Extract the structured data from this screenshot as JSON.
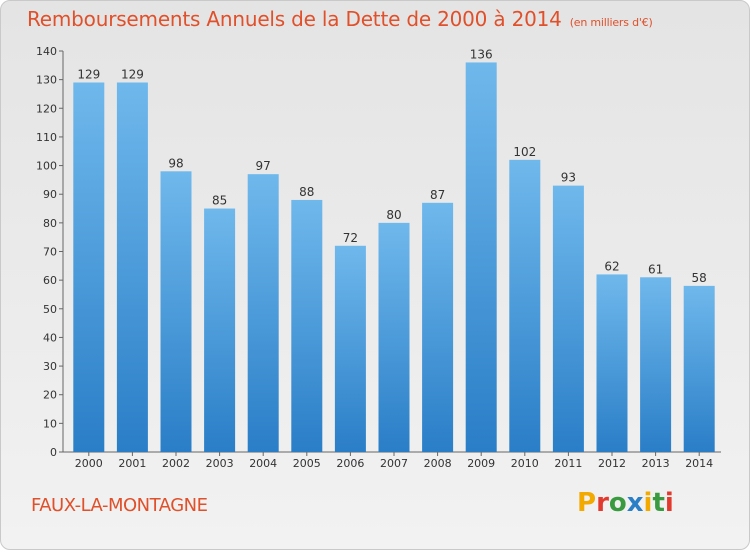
{
  "header": {
    "title": "Remboursements Annuels de la Dette de 2000 à 2014",
    "unit": "(en milliers d'€)"
  },
  "footer": {
    "commune": "FAUX-LA-MONTAGNE",
    "logo_text": "Proxiti",
    "logo_colors": [
      "#f2a900",
      "#e23b2e",
      "#3a9a3f",
      "#2b7fc6",
      "#f2a900",
      "#3a9a3f",
      "#e23b2e"
    ]
  },
  "colors": {
    "title": "#e0502a",
    "bar_top": "#6fb8ec",
    "bar_bottom": "#2a7ec7"
  },
  "chart_data": {
    "type": "bar",
    "categories": [
      "2000",
      "2001",
      "2002",
      "2003",
      "2004",
      "2005",
      "2006",
      "2007",
      "2008",
      "2009",
      "2010",
      "2011",
      "2012",
      "2013",
      "2014"
    ],
    "values": [
      129,
      129,
      98,
      85,
      97,
      88,
      72,
      80,
      87,
      136,
      102,
      93,
      62,
      61,
      58
    ],
    "title": "Remboursements Annuels de la Dette de 2000 à 2014",
    "ylim": [
      0,
      140
    ],
    "yticks": [
      0,
      10,
      20,
      30,
      40,
      50,
      60,
      70,
      80,
      90,
      100,
      110,
      120,
      130,
      140
    ],
    "grid": false,
    "legend": "none",
    "data_labels": true
  }
}
